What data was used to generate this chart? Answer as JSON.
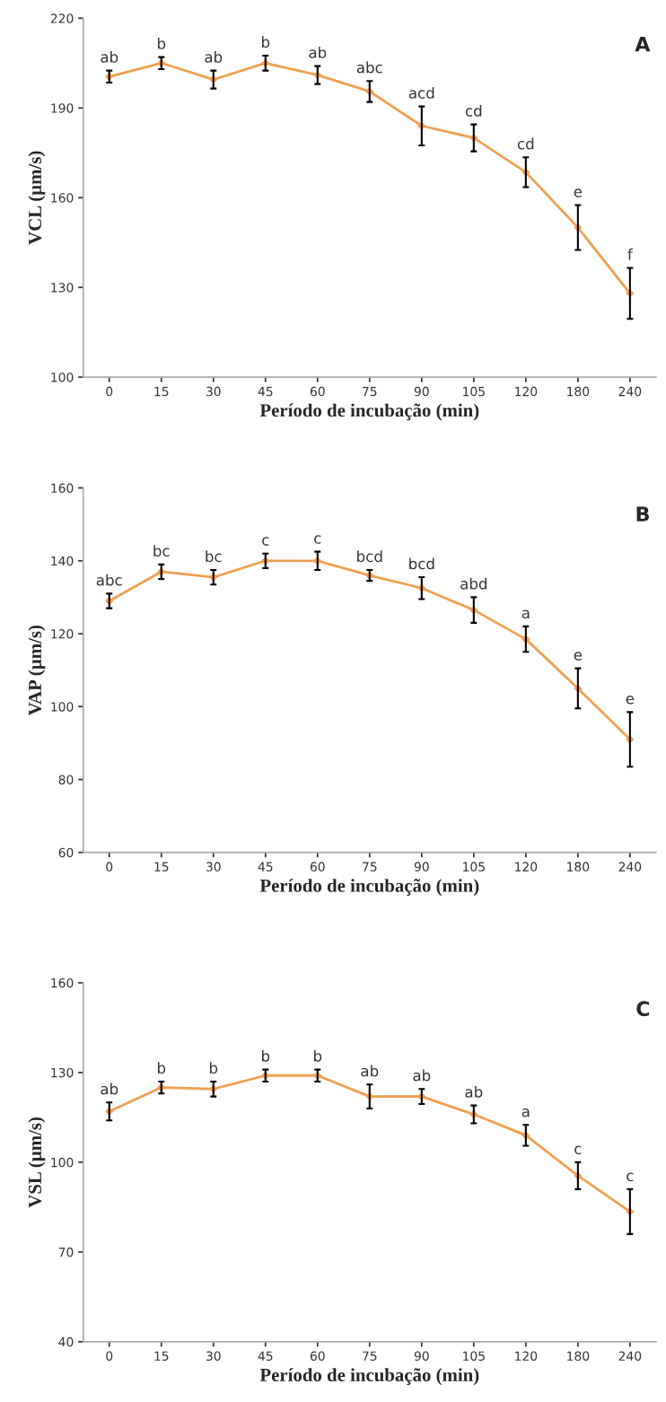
{
  "chart_data": [
    {
      "type": "line",
      "title": "A",
      "xlabel": "Período de incubação (min)",
      "ylabel": "VCL (µm/s)",
      "categories": [
        "0",
        "15",
        "30",
        "45",
        "60",
        "75",
        "90",
        "105",
        "120",
        "180",
        "240"
      ],
      "series": [
        {
          "color": "#f0a050",
          "values": [
            200.5,
            205,
            199.5,
            205,
            201,
            195.5,
            184,
            180,
            168.5,
            150,
            128
          ],
          "errors": [
            2,
            2,
            3,
            2.5,
            3,
            3.5,
            6.5,
            4.5,
            5,
            7.5,
            8.5
          ]
        }
      ],
      "ylim": [
        100,
        220
      ],
      "yticks": [
        100,
        130,
        160,
        190,
        220
      ],
      "grid": false,
      "marker": "diamond",
      "line_style": "solid",
      "annotations": [
        {
          "text": "ab",
          "x": "0",
          "y": 200.5
        },
        {
          "text": "b",
          "x": "15",
          "y": 205
        },
        {
          "text": "ab",
          "x": "30",
          "y": 199.5
        },
        {
          "text": "b",
          "x": "45",
          "y": 205
        },
        {
          "text": "ab",
          "x": "60",
          "y": 201
        },
        {
          "text": "abc",
          "x": "75",
          "y": 195.5
        },
        {
          "text": "acd",
          "x": "90",
          "y": 184
        },
        {
          "text": "cd",
          "x": "105",
          "y": 180
        },
        {
          "text": "cd",
          "x": "120",
          "y": 168.5
        },
        {
          "text": "e",
          "x": "180",
          "y": 150
        },
        {
          "text": "f",
          "x": "240",
          "y": 128
        }
      ]
    },
    {
      "type": "line",
      "title": "B",
      "xlabel": "Período de incubação (min)",
      "ylabel": "VAP (µm/s)",
      "categories": [
        "0",
        "15",
        "30",
        "45",
        "60",
        "75",
        "90",
        "105",
        "120",
        "180",
        "240"
      ],
      "series": [
        {
          "color": "#f0a050",
          "values": [
            129,
            137,
            135.5,
            140,
            140,
            136,
            132.5,
            126.5,
            118.5,
            105,
            91
          ],
          "errors": [
            2,
            2,
            2,
            2,
            2.5,
            1.5,
            3,
            3.5,
            3.5,
            5.5,
            7.5
          ]
        }
      ],
      "ylim": [
        60,
        160
      ],
      "yticks": [
        60,
        80,
        100,
        120,
        140,
        160
      ],
      "grid": false,
      "marker": "diamond",
      "line_style": "solid",
      "annotations": [
        {
          "text": "abc",
          "x": "0",
          "y": 129
        },
        {
          "text": "bc",
          "x": "15",
          "y": 137
        },
        {
          "text": "bc",
          "x": "30",
          "y": 135.5
        },
        {
          "text": "c",
          "x": "45",
          "y": 140
        },
        {
          "text": "c",
          "x": "60",
          "y": 140
        },
        {
          "text": "bcd",
          "x": "75",
          "y": 136
        },
        {
          "text": "bcd",
          "x": "90",
          "y": 132.5
        },
        {
          "text": "abd",
          "x": "105",
          "y": 126.5
        },
        {
          "text": "a",
          "x": "120",
          "y": 118.5
        },
        {
          "text": "e",
          "x": "180",
          "y": 105
        },
        {
          "text": "e",
          "x": "240",
          "y": 91
        }
      ]
    },
    {
      "type": "line",
      "title": "C",
      "xlabel": "Período de incubação (min)",
      "ylabel": "VSL (µm/s)",
      "categories": [
        "0",
        "15",
        "30",
        "45",
        "60",
        "75",
        "90",
        "105",
        "120",
        "180",
        "240"
      ],
      "series": [
        {
          "color": "#f0a050",
          "values": [
            117,
            125,
            124.5,
            129,
            129,
            122,
            122,
            116,
            109,
            95.5,
            83.5
          ],
          "errors": [
            3,
            2,
            2.5,
            2,
            2,
            4,
            2.5,
            3,
            3.5,
            4.5,
            7.5
          ]
        }
      ],
      "ylim": [
        40,
        160
      ],
      "yticks": [
        40,
        70,
        100,
        130,
        160
      ],
      "grid": false,
      "marker": "diamond",
      "line_style": "solid",
      "annotations": [
        {
          "text": "ab",
          "x": "0",
          "y": 117
        },
        {
          "text": "b",
          "x": "15",
          "y": 125
        },
        {
          "text": "b",
          "x": "30",
          "y": 124.5
        },
        {
          "text": "b",
          "x": "45",
          "y": 129
        },
        {
          "text": "b",
          "x": "60",
          "y": 129
        },
        {
          "text": "ab",
          "x": "75",
          "y": 122
        },
        {
          "text": "ab",
          "x": "90",
          "y": 122
        },
        {
          "text": "ab",
          "x": "105",
          "y": 116
        },
        {
          "text": "a",
          "x": "120",
          "y": 109
        },
        {
          "text": "c",
          "x": "180",
          "y": 95.5
        },
        {
          "text": "c",
          "x": "240",
          "y": 83.5
        }
      ]
    }
  ]
}
